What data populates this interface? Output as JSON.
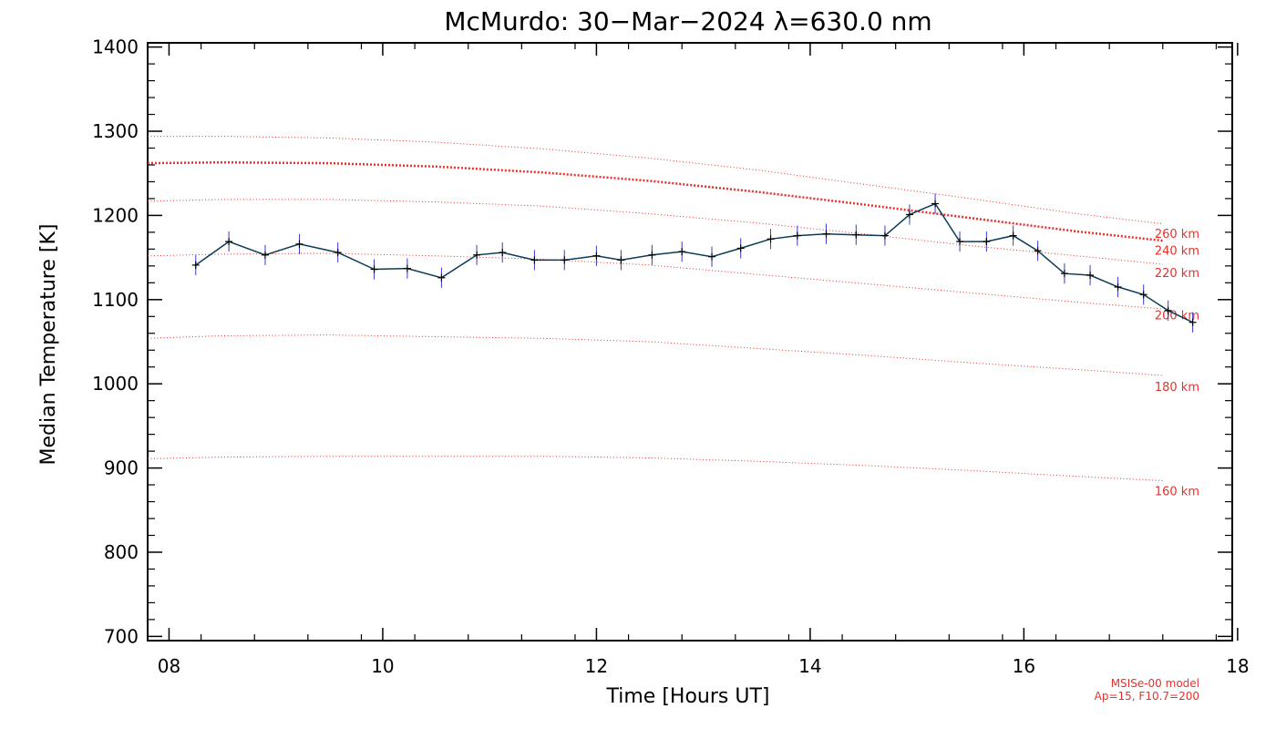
{
  "chart_data": {
    "type": "line",
    "title": "McMurdo: 30−Mar−2024 λ=630.0 nm",
    "xlabel": "Time [Hours UT]",
    "ylabel": "Median Temperature [K]",
    "xlim": [
      7.8,
      17.95
    ],
    "ylim": [
      695,
      1405
    ],
    "xticks": [
      8,
      10,
      12,
      14,
      16,
      18
    ],
    "xtick_labels": [
      "08",
      "10",
      "12",
      "14",
      "16",
      "18"
    ],
    "yticks": [
      700,
      800,
      900,
      1000,
      1100,
      1200,
      1300,
      1400
    ],
    "ytick_labels": [
      "700",
      "800",
      "900",
      "1000",
      "1100",
      "1200",
      "1300",
      "1400"
    ],
    "grid": false,
    "colors": {
      "data_line": "#0b3b57",
      "error_bars": "#3a3ad0",
      "model": "#e8302a"
    },
    "series": [
      {
        "kind": "measured",
        "x": [
          8.25,
          8.56,
          8.9,
          9.22,
          9.58,
          9.92,
          10.23,
          10.55,
          10.88,
          11.12,
          11.42,
          11.7,
          12.0,
          12.23,
          12.52,
          12.8,
          13.08,
          13.35,
          13.63,
          13.88,
          14.15,
          14.43,
          14.7,
          14.93,
          15.17,
          15.4,
          15.65,
          15.9,
          16.13,
          16.38,
          16.62,
          16.88,
          17.12,
          17.35,
          17.58
        ],
        "values": [
          1141,
          1169,
          1153,
          1166,
          1156,
          1136,
          1137,
          1126,
          1153,
          1156,
          1147,
          1147,
          1152,
          1147,
          1153,
          1157,
          1151,
          1161,
          1172,
          1176,
          1178,
          1177,
          1176,
          1201,
          1214,
          1169,
          1169,
          1176,
          1158,
          1131,
          1129,
          1115,
          1106,
          1087,
          1073
        ],
        "error": [
          12,
          12,
          12,
          12,
          12,
          12,
          12,
          12,
          12,
          12,
          12,
          12,
          12,
          12,
          12,
          12,
          12,
          12,
          12,
          12,
          12,
          12,
          12,
          12,
          12,
          12,
          12,
          12,
          12,
          12,
          12,
          12,
          12,
          12,
          12
        ]
      },
      {
        "kind": "model",
        "name": "160 km",
        "x": [
          7.8,
          8.5,
          9.5,
          10.5,
          11.5,
          12.5,
          13.5,
          14.5,
          15.5,
          16.5,
          17.3
        ],
        "values": [
          911,
          913,
          914,
          914,
          914,
          912,
          908,
          903,
          897,
          890,
          885
        ],
        "label_value": 873
      },
      {
        "kind": "model",
        "name": "180 km",
        "x": [
          7.8,
          8.5,
          9.5,
          10.5,
          11.5,
          12.5,
          13.5,
          14.5,
          15.5,
          16.5,
          17.3
        ],
        "values": [
          1054,
          1057,
          1058,
          1056,
          1054,
          1050,
          1042,
          1034,
          1025,
          1017,
          1010
        ],
        "label_value": 997
      },
      {
        "kind": "model",
        "name": "200 km",
        "x": [
          7.8,
          8.5,
          9.5,
          10.5,
          11.5,
          12.5,
          13.5,
          14.5,
          15.5,
          16.5,
          17.3
        ],
        "values": [
          1152,
          1154,
          1155,
          1152,
          1148,
          1141,
          1130,
          1119,
          1108,
          1097,
          1089
        ],
        "label_value": 1082
      },
      {
        "kind": "model",
        "name": "220 km",
        "x": [
          7.8,
          8.5,
          9.5,
          10.5,
          11.5,
          12.5,
          13.5,
          14.5,
          15.5,
          16.5,
          17.3
        ],
        "values": [
          1217,
          1219,
          1219,
          1216,
          1211,
          1202,
          1191,
          1178,
          1164,
          1152,
          1142
        ],
        "label_value": 1132
      },
      {
        "kind": "model",
        "name": "240 km",
        "x": [
          7.8,
          8.5,
          9.5,
          10.5,
          11.5,
          12.5,
          13.5,
          14.5,
          15.5,
          16.5,
          17.3
        ],
        "values": [
          1262,
          1263,
          1262,
          1258,
          1251,
          1241,
          1228,
          1213,
          1197,
          1181,
          1170
        ],
        "label_value": 1159,
        "emphasized": true
      },
      {
        "kind": "model",
        "name": "260 km",
        "x": [
          7.8,
          8.5,
          9.5,
          10.5,
          11.5,
          12.5,
          13.5,
          14.5,
          15.5,
          16.5,
          17.3
        ],
        "values": [
          1294,
          1294,
          1292,
          1287,
          1279,
          1268,
          1254,
          1237,
          1220,
          1202,
          1190
        ],
        "label_value": 1179
      }
    ],
    "annotations": [
      "MSISe-00 model",
      "Ap=15, F10.7=200"
    ]
  }
}
